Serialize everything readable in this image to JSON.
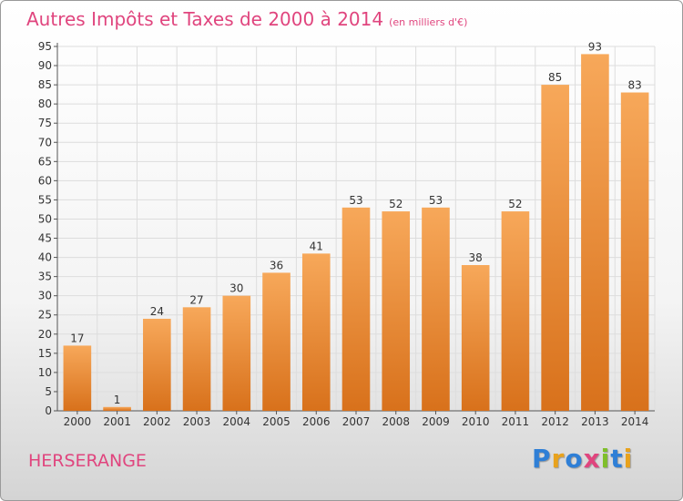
{
  "header": {
    "title": "Autres Impôts et Taxes de 2000 à 2014",
    "unit": "(en milliers d'€)"
  },
  "footer": {
    "place": "HERSERANGE",
    "logo_letters": [
      "P",
      "r",
      "o",
      "x",
      "i",
      "t",
      "i"
    ]
  },
  "colors": {
    "title": "#e0457e",
    "bar_top": "#f7a85a",
    "bar_bottom": "#d8711b",
    "grid": "#dddddd",
    "logo": [
      "#2f7fd6",
      "#e8a21c",
      "#2f7fd6",
      "#e0457e",
      "#7fbf2a",
      "#2f7fd6",
      "#e8a21c"
    ]
  },
  "chart_data": {
    "type": "bar",
    "title": "Autres Impôts et Taxes de 2000 à 2014",
    "subtitle": "(en milliers d'€)",
    "categories": [
      "2000",
      "2001",
      "2002",
      "2003",
      "2004",
      "2005",
      "2006",
      "2007",
      "2008",
      "2009",
      "2010",
      "2011",
      "2012",
      "2013",
      "2014"
    ],
    "values": [
      17,
      1,
      24,
      27,
      30,
      36,
      41,
      53,
      52,
      53,
      38,
      52,
      85,
      93,
      83
    ],
    "xlabel": "",
    "ylabel": "",
    "ylim": [
      0,
      95
    ],
    "yticks": [
      "0",
      "5",
      "10",
      "15",
      "20",
      "25",
      "30",
      "35",
      "40",
      "45",
      "50",
      "55",
      "60",
      "65",
      "70",
      "75",
      "80",
      "85",
      "90",
      "95"
    ],
    "grid": true,
    "data_labels": true
  }
}
